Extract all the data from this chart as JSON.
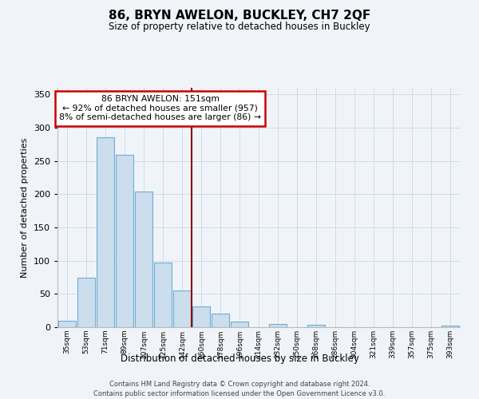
{
  "title": "86, BRYN AWELON, BUCKLEY, CH7 2QF",
  "subtitle": "Size of property relative to detached houses in Buckley",
  "xlabel": "Distribution of detached houses by size in Buckley",
  "ylabel": "Number of detached properties",
  "bar_labels": [
    "35sqm",
    "53sqm",
    "71sqm",
    "89sqm",
    "107sqm",
    "125sqm",
    "142sqm",
    "160sqm",
    "178sqm",
    "196sqm",
    "214sqm",
    "232sqm",
    "250sqm",
    "268sqm",
    "286sqm",
    "304sqm",
    "321sqm",
    "339sqm",
    "357sqm",
    "375sqm",
    "393sqm"
  ],
  "bar_values": [
    10,
    74,
    286,
    259,
    204,
    97,
    55,
    31,
    21,
    8,
    0,
    5,
    0,
    4,
    0,
    0,
    0,
    0,
    0,
    0,
    2
  ],
  "bar_color": "#ccdded",
  "bar_edge_color": "#6baed6",
  "vline_x_index": 6.5,
  "vline_color": "#8b0000",
  "annotation_line1": "86 BRYN AWELON: 151sqm",
  "annotation_line2": "← 92% of detached houses are smaller (957)",
  "annotation_line3": "8% of semi-detached houses are larger (86) →",
  "annotation_box_color": "#ffffff",
  "annotation_box_edge": "#cc0000",
  "ylim": [
    0,
    360
  ],
  "yticks": [
    0,
    50,
    100,
    150,
    200,
    250,
    300,
    350
  ],
  "footer_line1": "Contains HM Land Registry data © Crown copyright and database right 2024.",
  "footer_line2": "Contains public sector information licensed under the Open Government Licence v3.0.",
  "bg_color": "#f0f4f8",
  "grid_color": "#d0dce8"
}
